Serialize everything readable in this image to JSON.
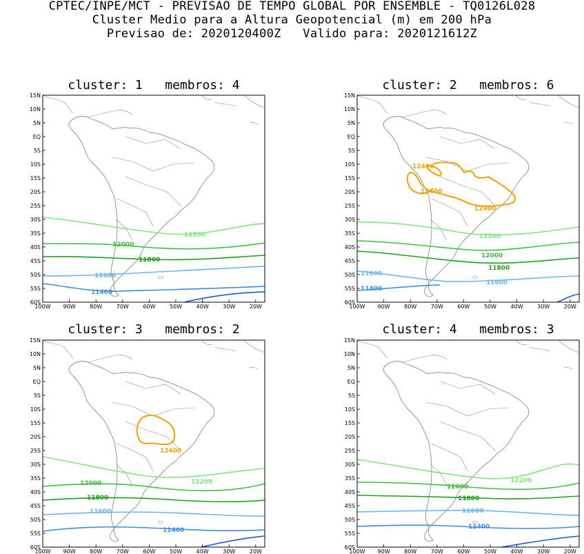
{
  "header": {
    "line1": "CPTEC/INPE/MCT - PREVISAO DE TEMPO GLOBAL POR ENSEMBLE - TQ0126L028",
    "line2": "Cluster Medio para a Altura Geopotencial (m) em 200 hPa",
    "line3": "Previsao de: 2020120400Z   Valido para: 2020121612Z"
  },
  "axes": {
    "lat_labels": [
      "15N",
      "10N",
      "5N",
      "EQ",
      "5S",
      "10S",
      "15S",
      "20S",
      "25S",
      "30S",
      "35S",
      "40S",
      "45S",
      "50S",
      "55S",
      "60S"
    ],
    "lon_labels": [
      "100W",
      "90W",
      "80W",
      "70W",
      "60W",
      "50W",
      "40W",
      "30W",
      "20W"
    ]
  },
  "colors": {
    "c12400": "#f5a000",
    "c12200": "#7ce87c",
    "c12000": "#3cc13c",
    "c11800": "#1aa01a",
    "c11600": "#6ab4f0",
    "c11400": "#3c8ce0",
    "c11200": "#1c5cc8",
    "map": "#8a8a8a"
  },
  "panels": [
    {
      "title": "cluster: 1   membros: 4",
      "labels": [
        {
          "text": "12200",
          "color": "#7ce87c"
        },
        {
          "text": "12000",
          "color": "#3cc13c"
        },
        {
          "text": "11800",
          "color": "#1aa01a"
        },
        {
          "text": "11600",
          "color": "#6ab4f0"
        },
        {
          "text": "11400",
          "color": "#3c8ce0"
        }
      ]
    },
    {
      "title": "cluster: 2   membros: 6",
      "labels": [
        {
          "text": "12400",
          "color": "#f5a000"
        },
        {
          "text": "12400",
          "color": "#f5a000"
        },
        {
          "text": "12400",
          "color": "#f5a000"
        },
        {
          "text": "12200",
          "color": "#7ce87c"
        },
        {
          "text": "12000",
          "color": "#3cc13c"
        },
        {
          "text": "11800",
          "color": "#1aa01a"
        },
        {
          "text": "11600",
          "color": "#6ab4f0"
        },
        {
          "text": "11600",
          "color": "#6ab4f0"
        },
        {
          "text": "11400",
          "color": "#3c8ce0"
        }
      ]
    },
    {
      "title": "cluster: 3   membros: 2",
      "labels": [
        {
          "text": "12400",
          "color": "#f5a000"
        },
        {
          "text": "12200",
          "color": "#7ce87c"
        },
        {
          "text": "12000",
          "color": "#3cc13c"
        },
        {
          "text": "11800",
          "color": "#1aa01a"
        },
        {
          "text": "11600",
          "color": "#6ab4f0"
        },
        {
          "text": "11400",
          "color": "#3c8ce0"
        }
      ]
    },
    {
      "title": "cluster: 4   membros: 3",
      "labels": [
        {
          "text": "12200",
          "color": "#7ce87c"
        },
        {
          "text": "12000",
          "color": "#3cc13c"
        },
        {
          "text": "11800",
          "color": "#1aa01a"
        },
        {
          "text": "11600",
          "color": "#6ab4f0"
        },
        {
          "text": "11400",
          "color": "#3c8ce0"
        }
      ]
    }
  ]
}
